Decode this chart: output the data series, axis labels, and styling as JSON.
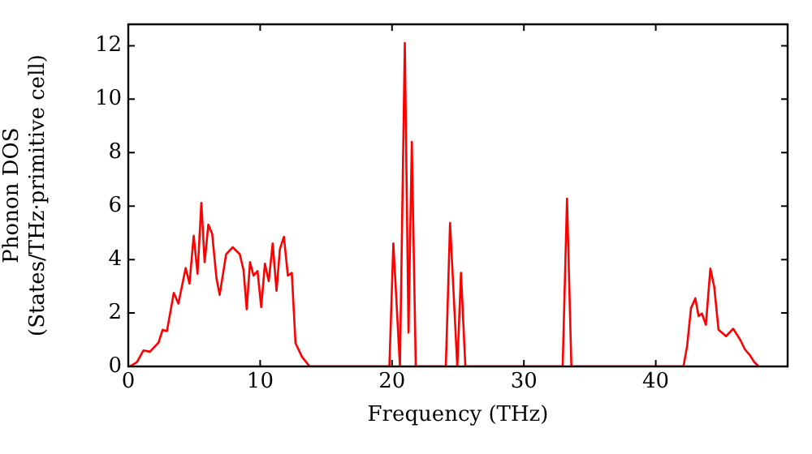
{
  "chart_data": {
    "type": "line",
    "xlabel": "Frequency (THz)",
    "ylabel": "Phonon DOS\n(States/THz·primitive cell)",
    "xlim": [
      0,
      50
    ],
    "ylim": [
      0,
      12.8
    ],
    "xticks": [
      0,
      10,
      20,
      30,
      40
    ],
    "yticks": [
      0,
      2,
      4,
      6,
      8,
      10,
      12
    ],
    "grid": false,
    "legend": false,
    "marker": "none",
    "line_style": "solid",
    "series": [
      {
        "color": "#ff0000",
        "x": [
          0.12,
          0.66,
          1.15,
          1.64,
          2.3,
          2.6,
          2.93,
          3.45,
          3.8,
          4.35,
          4.64,
          4.96,
          5.25,
          5.54,
          5.79,
          6.07,
          6.36,
          6.69,
          6.93,
          7.42,
          7.92,
          8.45,
          8.74,
          8.98,
          9.23,
          9.5,
          9.8,
          10.08,
          10.36,
          10.65,
          10.95,
          11.24,
          11.5,
          11.8,
          12.1,
          12.4,
          12.68,
          13.17,
          13.75,
          19.8,
          20.1,
          20.6,
          20.97,
          21.25,
          21.5,
          21.8,
          24.08,
          24.4,
          24.95,
          25.23,
          25.56,
          32.94,
          33.27,
          33.6,
          42.1,
          42.38,
          42.67,
          43.0,
          43.25,
          43.5,
          43.8,
          44.14,
          44.43,
          44.76,
          45.33,
          45.87,
          46.4,
          46.77,
          47.14,
          47.47,
          47.8
        ],
        "values": [
          0,
          0.16,
          0.6,
          0.55,
          0.9,
          1.37,
          1.32,
          2.75,
          2.35,
          3.68,
          3.1,
          4.89,
          3.47,
          6.12,
          3.9,
          5.31,
          4.96,
          3.29,
          2.68,
          4.2,
          4.46,
          4.2,
          3.6,
          2.14,
          3.9,
          3.4,
          3.57,
          2.22,
          3.84,
          3.19,
          4.6,
          2.83,
          4.4,
          4.85,
          3.4,
          3.5,
          0.87,
          0.36,
          0,
          0,
          4.6,
          0,
          12.1,
          1.27,
          8.4,
          0,
          0,
          5.37,
          0,
          3.5,
          0,
          0,
          6.28,
          0,
          0,
          0.77,
          2.18,
          2.55,
          1.88,
          1.98,
          1.56,
          3.66,
          2.99,
          1.37,
          1.13,
          1.41,
          1.0,
          0.63,
          0.42,
          0.16,
          0
        ]
      }
    ]
  }
}
